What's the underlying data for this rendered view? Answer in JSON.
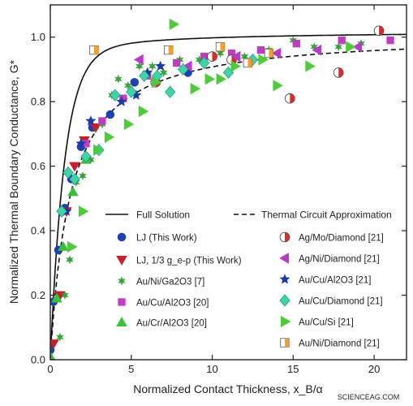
{
  "chart_data": {
    "type": "scatter",
    "title": "",
    "xlabel": "Normalized Contact Thickness, x_B/α",
    "ylabel": "Normalized Thermal Boundary Conductance, G*",
    "xlim": [
      0,
      22
    ],
    "ylim": [
      0,
      1.1
    ],
    "xticks": [
      "0",
      "5",
      "10",
      "15",
      "20"
    ],
    "yticks": [
      "0.0",
      "0.2",
      "0.4",
      "0.6",
      "0.8",
      "1.0"
    ],
    "grid": false,
    "legend_placement": "lower-right",
    "watermark": "SCIENCEAG.COM",
    "lines": [
      {
        "name": "Full Solution",
        "style": "solid",
        "a": 1.2
      },
      {
        "name": "Thermal Circuit Approximation",
        "style": "dashed",
        "a": 0.82
      }
    ],
    "series": [
      {
        "name": "LJ (This Work)",
        "marker": "circle",
        "color": "#1f3fb4",
        "x": [
          0,
          0.2,
          0.5,
          0.9,
          1.3,
          1.9,
          2.6,
          3.7,
          5.2,
          8.5
        ],
        "y": [
          0.03,
          0.18,
          0.34,
          0.47,
          0.56,
          0.66,
          0.72,
          0.76,
          0.86,
          0.89
        ]
      },
      {
        "name": "LJ, 1/3 g_e-p (This Work)",
        "marker": "tri-down",
        "color": "#c8202a",
        "x": [
          0.2,
          0.6,
          1.0,
          1.5,
          2.1,
          2.8
        ],
        "y": [
          0.05,
          0.2,
          0.46,
          0.6,
          0.68,
          0.72
        ]
      },
      {
        "name": "Au/Ni/Ga2O3 [7]",
        "marker": "star6",
        "color": "#3aa23a",
        "x": [
          0.6,
          0.9,
          1.2,
          1.6,
          2.0,
          2.5,
          3.2,
          3.8,
          4.2,
          4.8,
          5.5,
          6.3,
          7.0,
          8.0,
          9.2,
          10.5,
          12.0,
          13.5,
          15.0,
          16.3,
          17.8,
          19.2
        ],
        "y": [
          0.07,
          0.2,
          0.31,
          0.55,
          0.57,
          0.62,
          0.73,
          0.82,
          0.87,
          0.85,
          0.91,
          0.91,
          0.89,
          0.93,
          0.93,
          0.95,
          0.94,
          0.96,
          0.99,
          0.97,
          0.97,
          0.98
        ]
      },
      {
        "name": "Au/Cu/Al2O3 [20]",
        "marker": "square",
        "color": "#c03cc0",
        "x": [
          2.2,
          3.2,
          4.5,
          6.0,
          7.8,
          9.5,
          11.2,
          13.0,
          15.2,
          18.0,
          21.0
        ],
        "y": [
          0.67,
          0.74,
          0.81,
          0.88,
          0.92,
          0.94,
          0.95,
          0.96,
          0.98,
          0.99,
          0.99
        ]
      },
      {
        "name": "Au/Cr/Al2O3 [20]",
        "marker": "tri-up",
        "color": "#3ac03a",
        "x": [
          0,
          0.4,
          0.8,
          1.4,
          2.2
        ],
        "y": [
          0.01,
          0.19,
          0.35,
          0.52,
          0.62
        ]
      },
      {
        "name": "Ag/Mo/Diamond [21]",
        "marker": "half-circle",
        "color": "#d03030",
        "x": [
          6.5,
          10.0,
          11.2,
          14.8,
          17.8,
          20.3
        ],
        "y": [
          0.86,
          0.94,
          0.93,
          0.81,
          0.89,
          1.02
        ]
      },
      {
        "name": "Ag/Ni/Diamond [21]",
        "marker": "tri-left",
        "color": "#b83ac8",
        "x": [
          5.5,
          8.5,
          11.5,
          14.0,
          16.5,
          19.0
        ],
        "y": [
          0.93,
          0.91,
          0.94,
          0.95,
          0.96,
          0.97
        ]
      },
      {
        "name": "Au/Cu/Al2O3 [21]",
        "marker": "star5",
        "color": "#1a3aa8",
        "x": [
          1.0,
          1.9,
          2.5,
          4.4,
          5.3,
          6.0,
          6.8
        ],
        "y": [
          0.46,
          0.67,
          0.74,
          0.8,
          0.82,
          0.89,
          0.91
        ]
      },
      {
        "name": "Au/Cu/Diamond [21]",
        "marker": "diamond",
        "color": "#3ed4a8",
        "x": [
          0.7,
          1.1,
          1.5,
          2.2,
          3.0,
          4.0,
          5.0,
          5.8,
          6.6,
          7.4,
          8.2,
          9.5,
          11.0,
          12.5
        ],
        "y": [
          0.46,
          0.58,
          0.56,
          0.63,
          0.65,
          0.82,
          0.83,
          0.88,
          0.88,
          0.83,
          0.9,
          0.92,
          0.89,
          0.93
        ],
        "note": "light green-blue diamonds"
      },
      {
        "name": "Au/Cu/Si [21]",
        "marker": "tri-right",
        "color": "#4ccc3a",
        "x": [
          1.3,
          2.0,
          2.9,
          3.6,
          4.8,
          5.7,
          6.5,
          7.6,
          8.9,
          9.8,
          10.5,
          11.4,
          13.1,
          14.0,
          16.0,
          18.5
        ],
        "y": [
          0.35,
          0.46,
          0.65,
          0.69,
          0.73,
          0.77,
          0.86,
          1.04,
          0.84,
          0.87,
          0.87,
          0.91,
          0.93,
          0.85,
          0.91,
          0.97
        ]
      },
      {
        "name": "Au/Ni/Diamond [21]",
        "marker": "half-square",
        "color": "#f0a030",
        "x": [
          2.7,
          7.3,
          10.5,
          12.2,
          13.5
        ],
        "y": [
          0.96,
          0.96,
          0.97,
          0.92,
          0.95
        ]
      }
    ]
  }
}
